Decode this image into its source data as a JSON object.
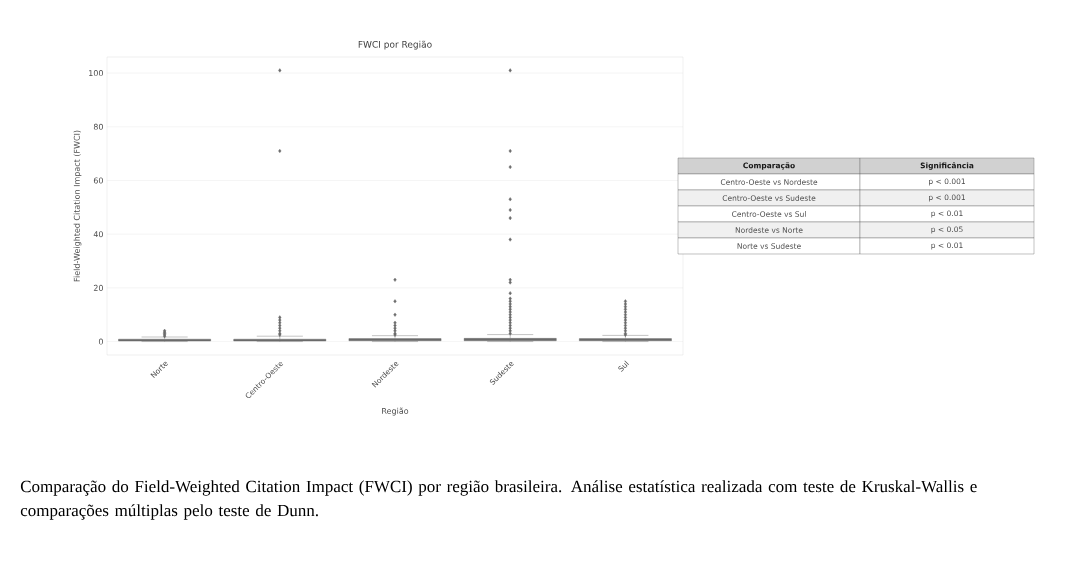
{
  "chart_data": [
    {
      "type": "box",
      "title": "FWCI por Região",
      "xlabel": "Região",
      "ylabel": "Field-Weighted Citation Impact (FWCI)",
      "categories": [
        "Norte",
        "Centro-Oeste",
        "Nordeste",
        "Sudeste",
        "Sul"
      ],
      "series": [
        {
          "color": "#6b6b6b",
          "boxes": [
            {
              "low": 0,
              "q1": 0.2,
              "median": 0.5,
              "q3": 0.9,
              "high": 1.7,
              "outliers": [
                2,
                2.5,
                3,
                3.5,
                4
              ]
            },
            {
              "low": 0,
              "q1": 0.2,
              "median": 0.5,
              "q3": 0.9,
              "high": 2,
              "outliers": [
                2.5,
                3,
                4,
                5,
                6,
                7,
                8,
                9,
                71,
                101
              ]
            },
            {
              "low": 0,
              "q1": 0.3,
              "median": 0.6,
              "q3": 1.1,
              "high": 2.2,
              "outliers": [
                2.5,
                3,
                4,
                5,
                6,
                7,
                10,
                15,
                23
              ]
            },
            {
              "low": 0,
              "q1": 0.3,
              "median": 0.7,
              "q3": 1.2,
              "high": 2.6,
              "outliers": [
                3,
                4,
                5,
                6,
                7,
                8,
                9,
                10,
                11,
                12,
                13,
                14,
                15,
                16,
                18,
                22,
                23,
                38,
                46,
                49,
                53,
                65,
                71,
                101
              ]
            },
            {
              "low": 0,
              "q1": 0.3,
              "median": 0.6,
              "q3": 1.1,
              "high": 2.3,
              "outliers": [
                2.5,
                3,
                4,
                5,
                6,
                7,
                8,
                9,
                10,
                11,
                12,
                13,
                14,
                15
              ]
            }
          ]
        }
      ],
      "ylim": [
        -5,
        106
      ],
      "yticks": [
        0,
        20,
        40,
        60,
        80,
        100
      ],
      "grid": "y",
      "marker": "diamond",
      "annotations": [
        "Comparação do Field-Weighted Citation Impact (FWCI) por região brasileira. Análise estatística realizada com teste de Kruskal-Wallis e comparações múltiplas pelo teste de Dunn."
      ]
    },
    {
      "type": "other",
      "annotations": [
        "Comparação",
        "Significância",
        "Centro-Oeste vs Nordeste",
        "p < 0.001",
        "Centro-Oeste vs Sudeste",
        "p < 0.001",
        "Centro-Oeste vs Sul",
        "p < 0.01",
        "Nordeste vs Norte",
        "p < 0.05",
        "Norte vs Sudeste",
        "p < 0.01"
      ]
    }
  ]
}
